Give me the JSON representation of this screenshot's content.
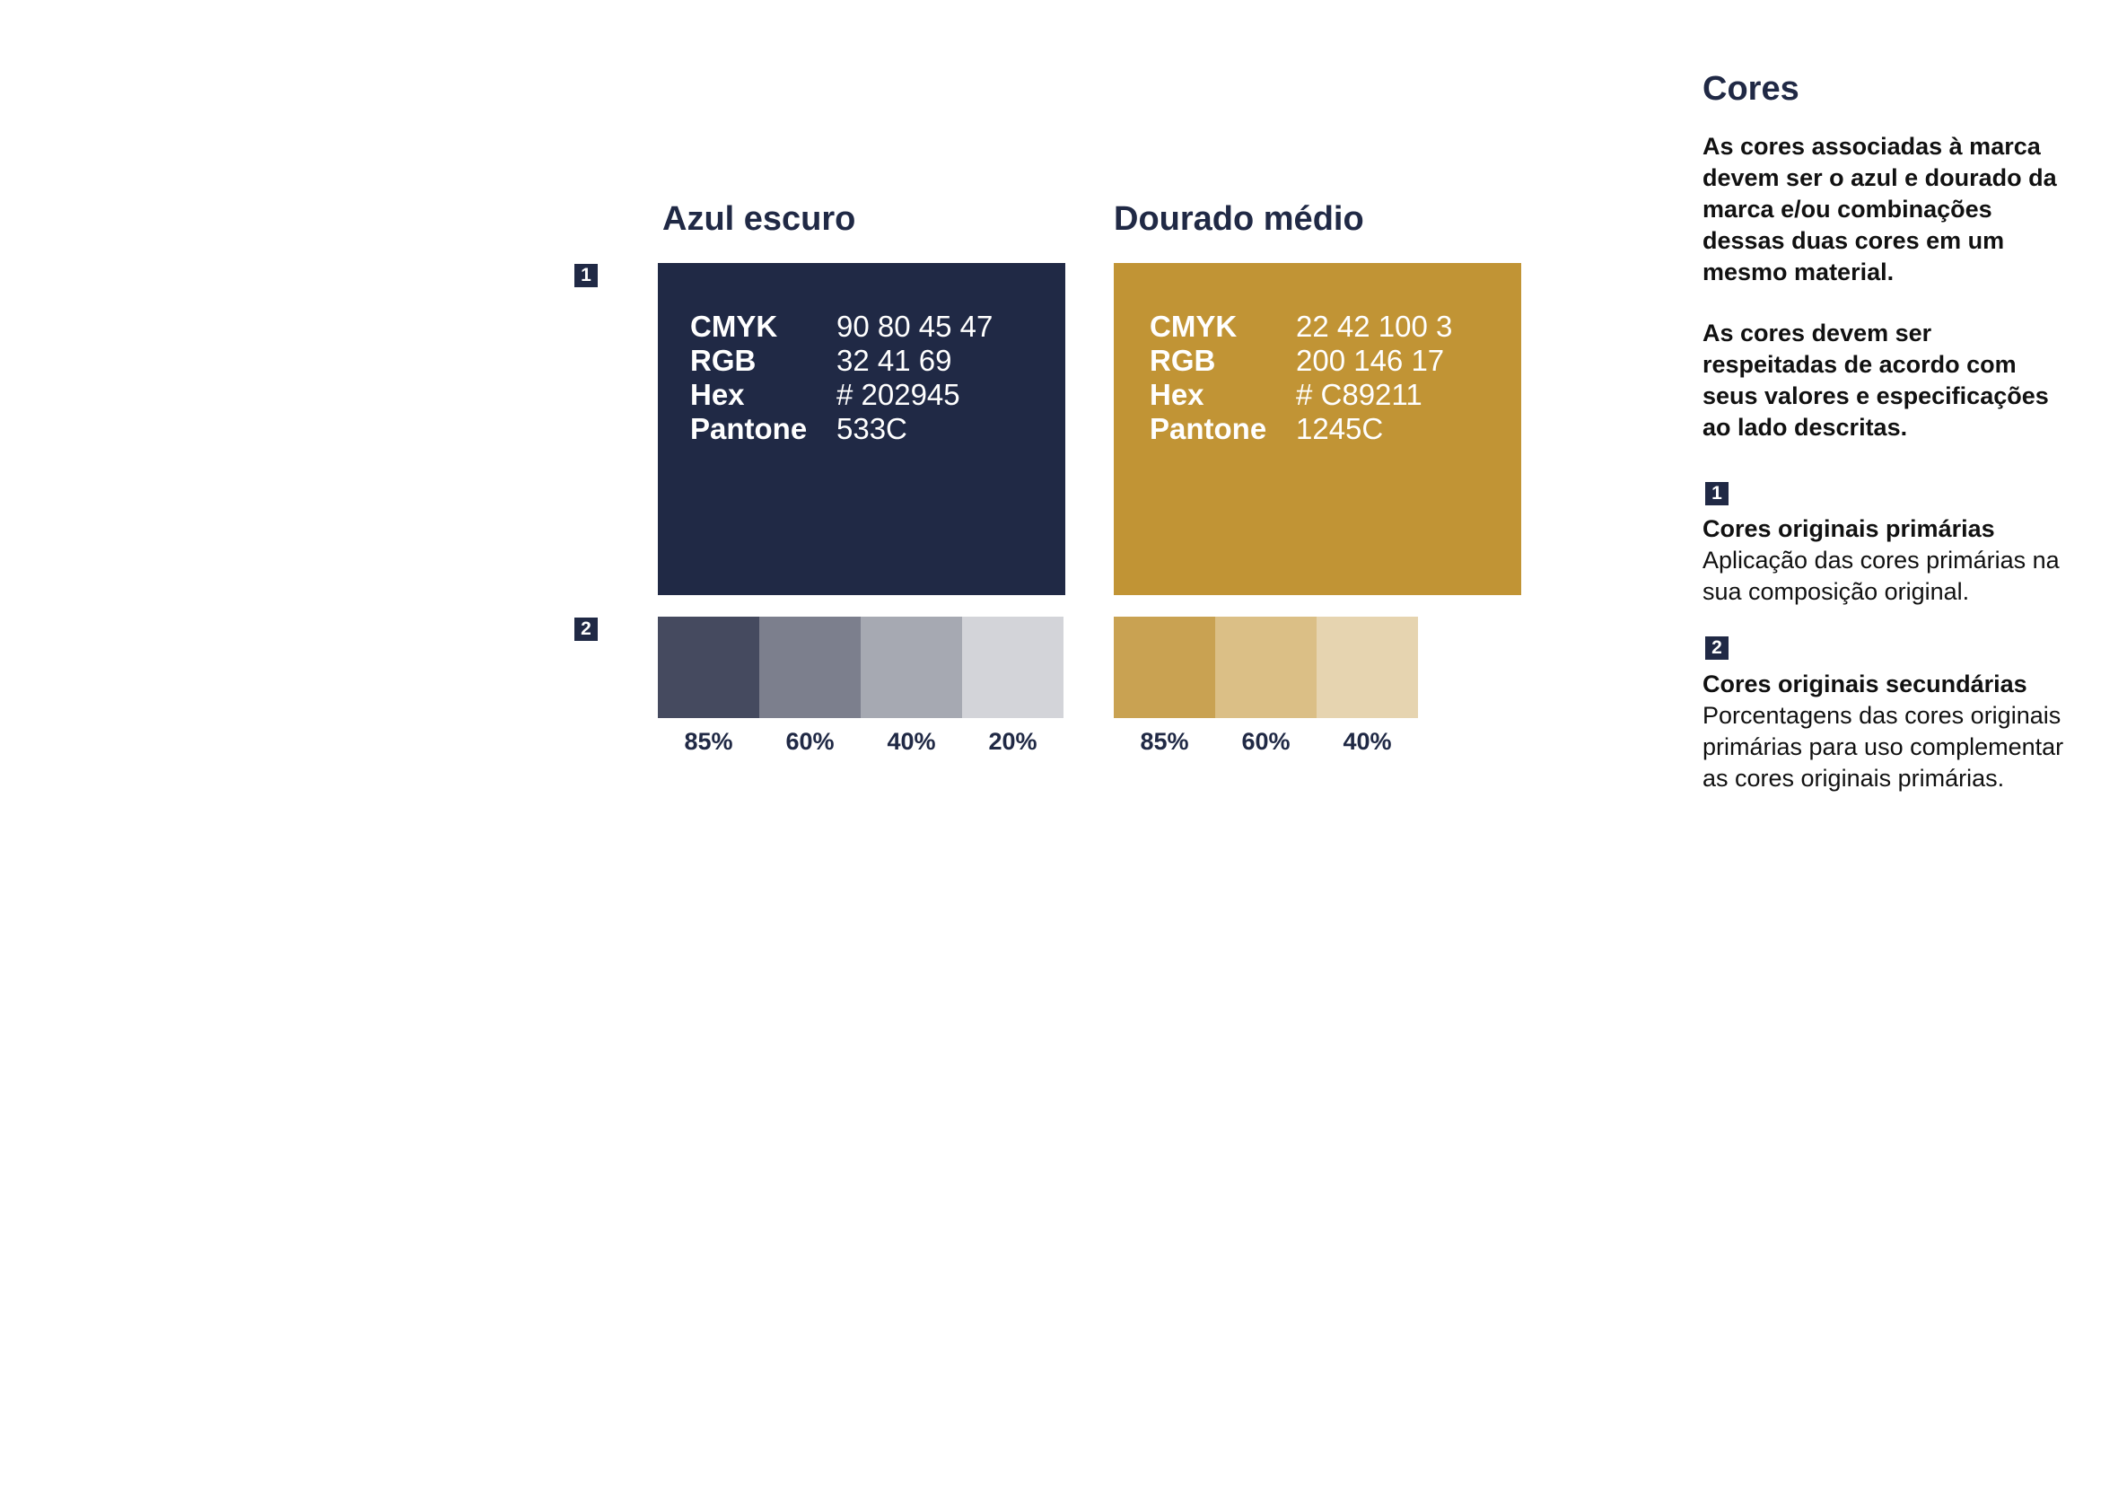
{
  "colors": {
    "azul": {
      "title": "Azul escuro",
      "hex": "#202945",
      "specs": [
        {
          "label": "CMYK",
          "value": "90 80 45 47"
        },
        {
          "label": "RGB",
          "value": "32 41 69"
        },
        {
          "label": "Hex",
          "value": "# 202945"
        },
        {
          "label": "Pantone",
          "value": "533C"
        }
      ],
      "tints": [
        {
          "label": "85%",
          "fill": "#454a5f"
        },
        {
          "label": "60%",
          "fill": "#7c7f8d"
        },
        {
          "label": "40%",
          "fill": "#a6a9b2"
        },
        {
          "label": "20%",
          "fill": "#d3d4d9"
        }
      ]
    },
    "dourado": {
      "title": "Dourado médio",
      "hex": "#C89211",
      "specs": [
        {
          "label": "CMYK",
          "value": "22 42 100 3"
        },
        {
          "label": "RGB",
          "value": "200 146 17"
        },
        {
          "label": "Hex",
          "value": "# C89211"
        },
        {
          "label": "Pantone",
          "value": "1245C"
        }
      ],
      "tints": [
        {
          "label": "85%",
          "fill": "#c9a252"
        },
        {
          "label": "60%",
          "fill": "#dbbf86"
        },
        {
          "label": "40%",
          "fill": "#e6d4b0"
        }
      ]
    }
  },
  "markers": {
    "one": "1",
    "two": "2"
  },
  "sidebar": {
    "title": "Cores",
    "paragraph1": "As cores associadas à marca devem ser o azul e dourado da marca e/ou combinações dessas duas cores em um mesmo material.",
    "paragraph2": "As cores devem ser respeitadas de acordo com seus valores e especificações ao lado descritas.",
    "item1": {
      "marker": "1",
      "heading": "Cores originais primárias",
      "text": "Aplicação das cores primárias na sua composição original."
    },
    "item2": {
      "marker": "2",
      "heading": "Cores originais secundárias",
      "text": "Porcentagens das cores originais primárias para uso complementar as cores originais primárias."
    }
  }
}
